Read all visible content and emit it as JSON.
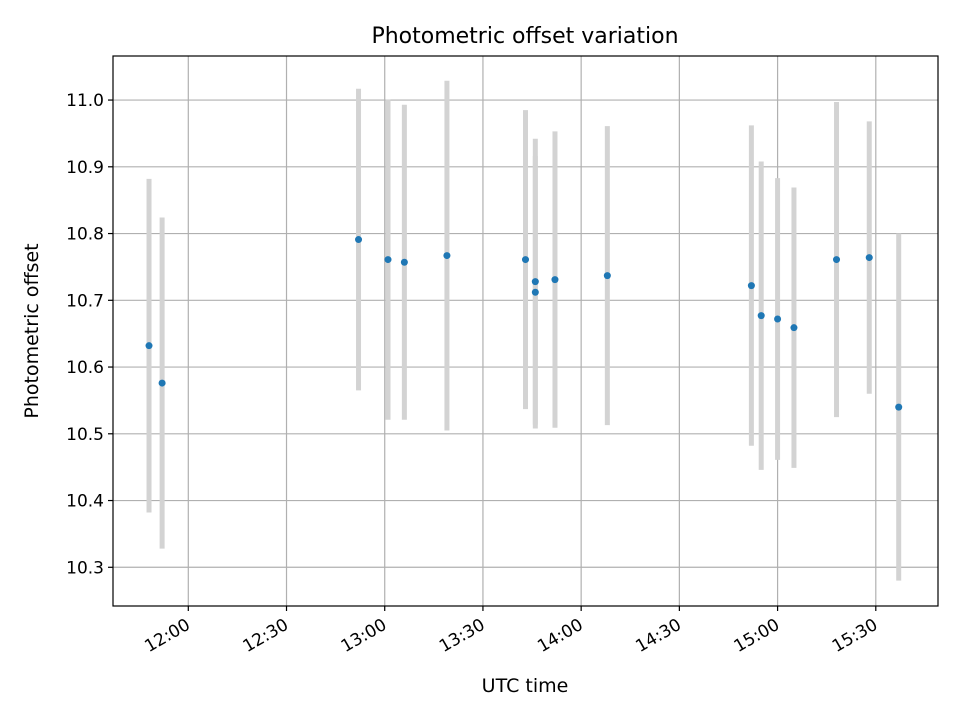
{
  "chart_data": {
    "type": "scatter",
    "title": "Photometric offset variation",
    "xlabel": "UTC time",
    "ylabel": "Photometric offset",
    "x_ticks": [
      "12:00",
      "12:30",
      "13:00",
      "13:30",
      "14:00",
      "14:30",
      "15:00",
      "15:30"
    ],
    "y_ticks": [
      "10.3",
      "10.4",
      "10.5",
      "10.6",
      "10.7",
      "10.8",
      "10.9",
      "11.0"
    ],
    "xlim": [
      "11:37",
      "15:49"
    ],
    "ylim": [
      10.242,
      11.066
    ],
    "grid": true,
    "point_color": "#1f77b4",
    "errorbar_color": "#d3d3d3",
    "points": [
      {
        "x": "11:48",
        "y": 10.632,
        "err": 0.25
      },
      {
        "x": "11:52",
        "y": 10.576,
        "err": 0.248
      },
      {
        "x": "12:52",
        "y": 10.791,
        "err": 0.226
      },
      {
        "x": "13:01",
        "y": 10.761,
        "err": 0.24
      },
      {
        "x": "13:06",
        "y": 10.757,
        "err": 0.236
      },
      {
        "x": "13:19",
        "y": 10.767,
        "err": 0.262
      },
      {
        "x": "13:43",
        "y": 10.761,
        "err": 0.224
      },
      {
        "x": "13:46",
        "y": 10.728,
        "err": 0.214
      },
      {
        "x": "13:46",
        "y": 10.712,
        "err": 0.204
      },
      {
        "x": "13:52",
        "y": 10.731,
        "err": 0.222
      },
      {
        "x": "14:08",
        "y": 10.737,
        "err": 0.224
      },
      {
        "x": "14:52",
        "y": 10.722,
        "err": 0.24
      },
      {
        "x": "14:55",
        "y": 10.677,
        "err": 0.231
      },
      {
        "x": "15:00",
        "y": 10.672,
        "err": 0.211
      },
      {
        "x": "15:05",
        "y": 10.659,
        "err": 0.21
      },
      {
        "x": "15:18",
        "y": 10.761,
        "err": 0.236
      },
      {
        "x": "15:28",
        "y": 10.764,
        "err": 0.204
      },
      {
        "x": "15:37",
        "y": 10.54,
        "err": 0.26
      }
    ]
  }
}
